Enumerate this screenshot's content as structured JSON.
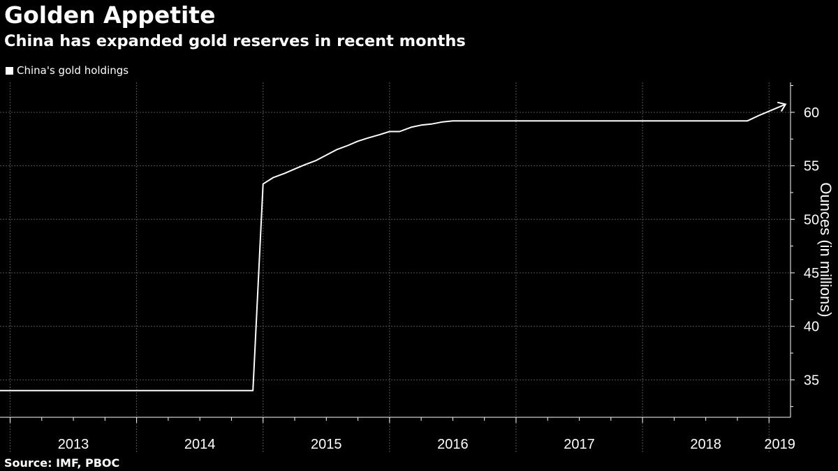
{
  "header": {
    "title": "Golden Appetite",
    "subtitle": "China has expanded gold reserves in recent months"
  },
  "legend": {
    "label": "China's gold holdings"
  },
  "footer": {
    "source": "Source: IMF, PBOC"
  },
  "colors": {
    "background": "#000000",
    "line": "#ffffff",
    "grid": "#555555"
  },
  "chart_data": {
    "type": "line",
    "title": "Golden Appetite",
    "subtitle": "China has expanded gold reserves in recent months",
    "xlabel": "",
    "ylabel": "Ounces (in millions)",
    "xlim": [
      2012.92,
      2019.17
    ],
    "ylim": [
      31.5,
      62.8
    ],
    "yticks": [
      35,
      40,
      45,
      50,
      55,
      60
    ],
    "year_ticks": [
      2013,
      2014,
      2015,
      2016,
      2017,
      2018,
      2019
    ],
    "year_labels": [
      "2013",
      "2014",
      "2015",
      "2016",
      "2017",
      "2018",
      "2019"
    ],
    "grid": true,
    "legend_position": "top-left",
    "end_marker": "arrow",
    "series": [
      {
        "name": "China's gold holdings",
        "x": [
          2012.92,
          2014.92,
          2015.0,
          2015.08,
          2015.17,
          2015.25,
          2015.33,
          2015.42,
          2015.5,
          2015.58,
          2015.67,
          2015.75,
          2015.83,
          2015.92,
          2016.0,
          2016.08,
          2016.17,
          2016.25,
          2016.33,
          2016.42,
          2016.5,
          2018.83,
          2018.92,
          2019.0,
          2019.08
        ],
        "values": [
          34.0,
          34.0,
          53.3,
          53.9,
          54.3,
          54.7,
          55.1,
          55.5,
          56.0,
          56.5,
          56.9,
          57.3,
          57.6,
          57.9,
          58.2,
          58.2,
          58.6,
          58.8,
          58.9,
          59.1,
          59.2,
          59.2,
          59.7,
          60.1,
          60.5
        ]
      }
    ]
  }
}
